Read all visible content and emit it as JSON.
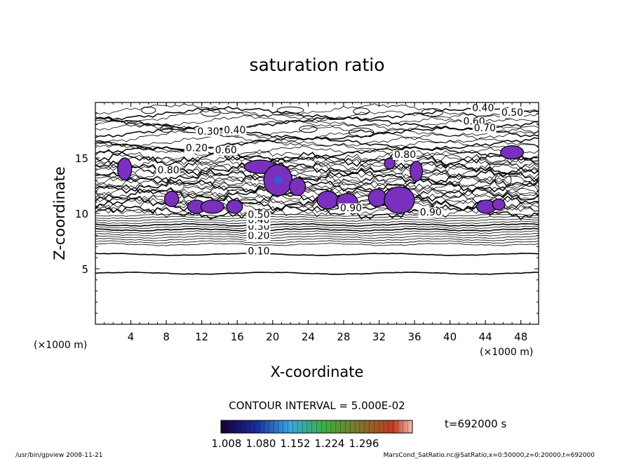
{
  "chart_data": {
    "type": "contour",
    "title": "saturation ratio",
    "xlabel": "X-coordinate",
    "ylabel": "Z-coordinate",
    "x_unit": "(×1000 m)",
    "z_unit": "(×1000 m)",
    "xlim": [
      0,
      50
    ],
    "ylim": [
      0,
      20
    ],
    "x_ticks": [
      4,
      8,
      12,
      16,
      20,
      24,
      28,
      32,
      36,
      40,
      44,
      48
    ],
    "y_ticks": [
      5,
      10,
      15
    ],
    "contour_interval_text": "CONTOUR INTERVAL = 5.000E-02",
    "time_text": "t=692000 s",
    "colorbar_ticks": [
      "1.008",
      "1.080",
      "1.152",
      "1.224",
      "1.296"
    ],
    "contour_labels": [
      {
        "text": "0.10",
        "x": 17.2,
        "z": 6.3
      },
      {
        "text": "0.20",
        "x": 17.2,
        "z": 7.7
      },
      {
        "text": "0.30",
        "x": 17.2,
        "z": 8.5
      },
      {
        "text": "0.40",
        "x": 17.2,
        "z": 9.1
      },
      {
        "text": "0.50",
        "x": 17.2,
        "z": 9.6
      },
      {
        "text": "0.40",
        "x": 42.5,
        "z": 19.2
      },
      {
        "text": "0.50",
        "x": 45.8,
        "z": 18.8
      },
      {
        "text": "0.60",
        "x": 41.5,
        "z": 18.0
      },
      {
        "text": "0.70",
        "x": 42.7,
        "z": 17.4
      },
      {
        "text": "0.30",
        "x": 11.5,
        "z": 17.1
      },
      {
        "text": "0.40",
        "x": 14.5,
        "z": 17.2
      },
      {
        "text": "0.20",
        "x": 10.2,
        "z": 15.6
      },
      {
        "text": "0.60",
        "x": 13.5,
        "z": 15.4
      },
      {
        "text": "0.80",
        "x": 7.0,
        "z": 13.6
      },
      {
        "text": "0.90",
        "x": 27.6,
        "z": 10.2
      },
      {
        "text": "0.90",
        "x": 36.6,
        "z": 9.8
      },
      {
        "text": "0.80",
        "x": 33.7,
        "z": 15.0
      }
    ],
    "supersaturated_patches": [
      {
        "x": 3.3,
        "z": 14.0,
        "rx": 0.8,
        "rz": 1.0
      },
      {
        "x": 8.6,
        "z": 11.3,
        "rx": 0.8,
        "rz": 0.7
      },
      {
        "x": 11.4,
        "z": 10.6,
        "rx": 1.0,
        "rz": 0.6
      },
      {
        "x": 13.2,
        "z": 10.6,
        "rx": 1.3,
        "rz": 0.6
      },
      {
        "x": 15.7,
        "z": 10.6,
        "rx": 0.9,
        "rz": 0.6
      },
      {
        "x": 18.6,
        "z": 14.2,
        "rx": 1.8,
        "rz": 0.6
      },
      {
        "x": 20.6,
        "z": 13.0,
        "rx": 1.6,
        "rz": 1.4
      },
      {
        "x": 22.8,
        "z": 12.4,
        "rx": 0.9,
        "rz": 0.8
      },
      {
        "x": 26.2,
        "z": 11.2,
        "rx": 1.2,
        "rz": 0.8
      },
      {
        "x": 28.4,
        "z": 11.0,
        "rx": 1.2,
        "rz": 0.8
      },
      {
        "x": 31.8,
        "z": 11.4,
        "rx": 1.0,
        "rz": 0.8
      },
      {
        "x": 34.3,
        "z": 11.2,
        "rx": 1.7,
        "rz": 1.2
      },
      {
        "x": 36.2,
        "z": 13.8,
        "rx": 0.7,
        "rz": 0.9
      },
      {
        "x": 33.2,
        "z": 14.5,
        "rx": 0.6,
        "rz": 0.5
      },
      {
        "x": 44.1,
        "z": 10.6,
        "rx": 1.1,
        "rz": 0.6
      },
      {
        "x": 45.5,
        "z": 10.8,
        "rx": 0.7,
        "rz": 0.5
      },
      {
        "x": 47.0,
        "z": 15.5,
        "rx": 1.3,
        "rz": 0.6
      }
    ]
  },
  "footer": {
    "left": "/usr/bin/gpview   2008-11-21",
    "right": "MarsCond_SatRatio.nc@SatRatio,x=0:50000,z=0:20000,t=692000"
  },
  "colors": {
    "fill": "#7a2fbd",
    "fill_core": "#2e5fd6",
    "line": "#000000"
  }
}
